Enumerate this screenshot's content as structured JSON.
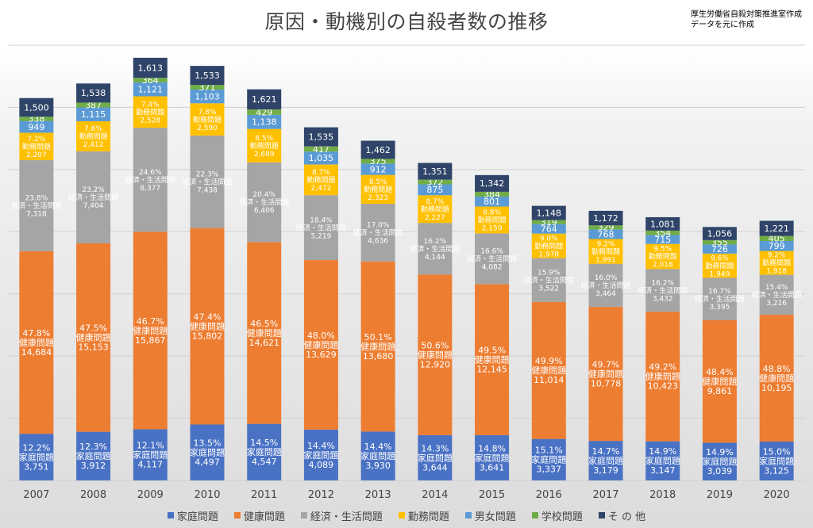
{
  "title": "原因・動機別の自殺者数の推移",
  "source_note": [
    "厚生労働省自殺対策推進室作成",
    "データを元に作成"
  ],
  "chart_data": {
    "type": "bar",
    "stacked": true,
    "categories": [
      "2007",
      "2008",
      "2009",
      "2010",
      "2011",
      "2012",
      "2013",
      "2014",
      "2015",
      "2016",
      "2017",
      "2018",
      "2019",
      "2020"
    ],
    "ylim": [
      0,
      35000
    ],
    "grid": true,
    "legend_position": "bottom",
    "series": [
      {
        "name": "家庭問題",
        "color": "#4a72c4",
        "values": [
          3751,
          3912,
          4117,
          4497,
          4547,
          4089,
          3930,
          3644,
          3641,
          3337,
          3179,
          3147,
          3039,
          3125
        ],
        "labels": [
          "12.2%",
          "12.3%",
          "12.1%",
          "13.5%",
          "14.5%",
          "14.4%",
          "14.4%",
          "14.3%",
          "14.8%",
          "15.1%",
          "14.7%",
          "14.9%",
          "14.9%",
          "15.0%"
        ],
        "value_labels": [
          "3,751",
          "3,912",
          "4,117",
          "4,497",
          "4,547",
          "4,089",
          "3,930",
          "3,644",
          "3,641",
          "3,337",
          "3,179",
          "3,147",
          "3,039",
          "3,125"
        ]
      },
      {
        "name": "健康問題",
        "color": "#ed7d31",
        "values": [
          14684,
          15153,
          15867,
          15802,
          14621,
          13629,
          13680,
          12920,
          12145,
          11014,
          10778,
          10423,
          9861,
          10195
        ],
        "labels": [
          "47.8%",
          "47.5%",
          "46.7%",
          "47.4%",
          "46.5%",
          "48.0%",
          "50.1%",
          "50.6%",
          "49.5%",
          "49.9%",
          "49.7%",
          "49.2%",
          "48.4%",
          "48.8%"
        ],
        "value_labels": [
          "14,684",
          "15,153",
          "15,867",
          "15,802",
          "14,621",
          "13,629",
          "13,680",
          "12,920",
          "12,145",
          "11,014",
          "10,778",
          "10,423",
          "9,861",
          "10,195"
        ]
      },
      {
        "name": "経済・生活問題",
        "color": "#a5a5a5",
        "values": [
          7318,
          7404,
          8377,
          7438,
          6406,
          5219,
          4636,
          4144,
          4082,
          3522,
          3464,
          3432,
          3395,
          3216
        ],
        "labels": [
          "23.8%",
          "23.2%",
          "24.6%",
          "22.3%",
          "20.4%",
          "18.4%",
          "17.0%",
          "16.2%",
          "16.6%",
          "15.9%",
          "16.0%",
          "16.2%",
          "16.7%",
          "15.4%"
        ],
        "value_labels": [
          "7,318",
          "7,404",
          "8,377",
          "7,438",
          "6,406",
          "5,219",
          "4,636",
          "4,144",
          "4,082",
          "3,522",
          "3,464",
          "3,432",
          "3,395",
          "3,216"
        ]
      },
      {
        "name": "勤務問題",
        "color": "#ffc000",
        "values": [
          2207,
          2412,
          2528,
          2590,
          2689,
          2472,
          2323,
          2227,
          2159,
          1978,
          1991,
          2018,
          1949,
          1918
        ],
        "labels": [
          "7.2%",
          "7.6%",
          "7.4%",
          "7.8%",
          "8.5%",
          "8.7%",
          "8.5%",
          "8.7%",
          "8.8%",
          "9.0%",
          "9.2%",
          "9.5%",
          "9.6%",
          "9.2%"
        ],
        "value_labels": [
          "2,207",
          "2,412",
          "2,528",
          "2,590",
          "2,689",
          "2,472",
          "2,323",
          "2,227",
          "2,159",
          "1,978",
          "1,991",
          "2,018",
          "1,949",
          "1,918"
        ]
      },
      {
        "name": "男女問題",
        "color": "#5b9bd5",
        "values": [
          949,
          1115,
          1121,
          1103,
          1138,
          1035,
          912,
          875,
          801,
          764,
          768,
          715,
          726,
          799
        ],
        "value_labels": [
          "949",
          "1,115",
          "1,121",
          "1,103",
          "1,138",
          "1,035",
          "912",
          "875",
          "801",
          "764",
          "768",
          "715",
          "726",
          "799"
        ]
      },
      {
        "name": "学校問題",
        "color": "#70ad47",
        "values": [
          338,
          387,
          364,
          371,
          429,
          417,
          375,
          372,
          384,
          319,
          329,
          354,
          355,
          405
        ],
        "value_labels": [
          "338",
          "387",
          "364",
          "371",
          "429",
          "417",
          "375",
          "372",
          "384",
          "319",
          "329",
          "354",
          "355",
          "405"
        ]
      },
      {
        "name": "そ の 他",
        "color": "#2f4468",
        "values": [
          1500,
          1538,
          1613,
          1533,
          1621,
          1535,
          1462,
          1351,
          1342,
          1148,
          1172,
          1081,
          1056,
          1221
        ],
        "value_labels": [
          "1,500",
          "1,538",
          "1,613",
          "1,533",
          "1,621",
          "1,535",
          "1,462",
          "1,351",
          "1,342",
          "1,148",
          "1,172",
          "1,081",
          "1,056",
          "1,221"
        ]
      }
    ]
  }
}
